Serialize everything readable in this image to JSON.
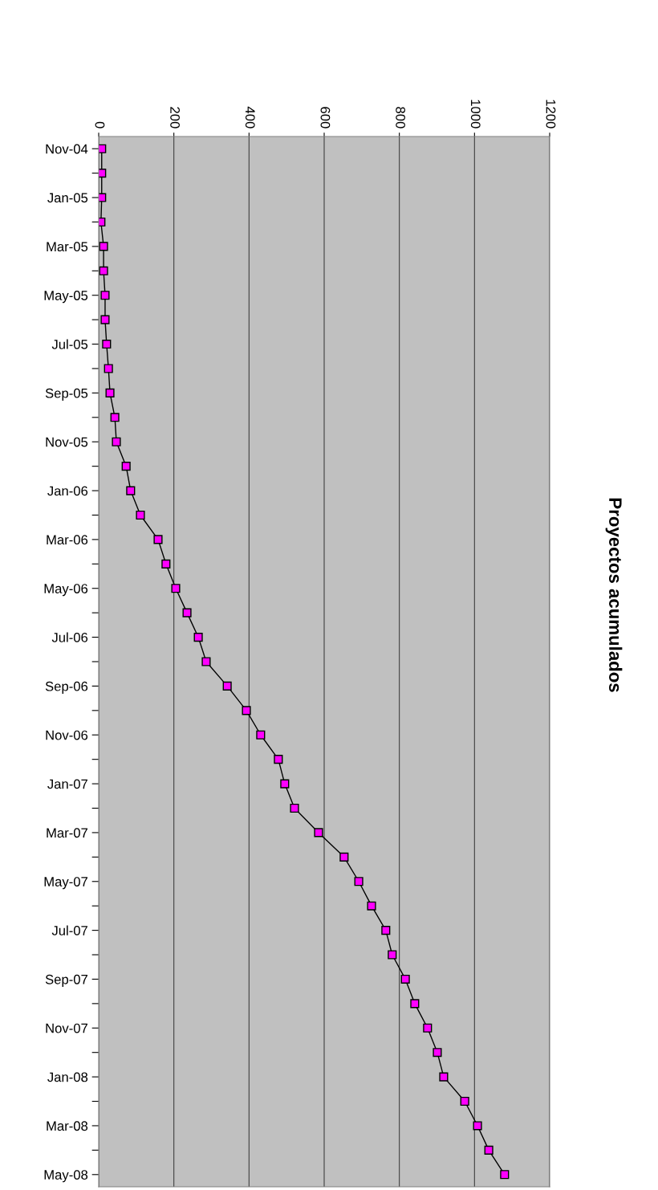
{
  "chart_data": {
    "type": "line",
    "title": "Proyectos acumulados",
    "orientation": "horizontal",
    "categories": [
      "Nov-04",
      null,
      "Jan-05",
      null,
      "Mar-05",
      null,
      "May-05",
      null,
      "Jul-05",
      null,
      "Sep-05",
      null,
      "Nov-05",
      null,
      "Jan-06",
      null,
      "Mar-06",
      null,
      "May-06",
      null,
      "Jul-06",
      null,
      "Sep-06",
      null,
      "Nov-06",
      null,
      "Jan-07",
      null,
      "Mar-07",
      null,
      "May-07",
      null,
      "Jul-07",
      null,
      "Sep-07",
      null,
      "Nov-07",
      null,
      "Jan-08",
      null,
      "Mar-08",
      null,
      "May-08"
    ],
    "series": [
      {
        "color": "#ff00ff",
        "values": [
          8,
          8,
          8,
          6,
          13,
          13,
          17,
          17,
          21,
          26,
          30,
          43,
          47,
          73,
          85,
          111,
          158,
          179,
          205,
          235,
          265,
          286,
          342,
          393,
          431,
          478,
          495,
          521,
          585,
          653,
          692,
          726,
          764,
          781,
          816,
          841,
          875,
          901,
          918,
          974,
          1008,
          1038,
          1080
        ]
      }
    ],
    "xlim": [
      0,
      1200
    ],
    "xticks": [
      0,
      200,
      400,
      600,
      800,
      1000,
      1200
    ],
    "grid": "x",
    "marker": "square",
    "line_style": "solid"
  }
}
